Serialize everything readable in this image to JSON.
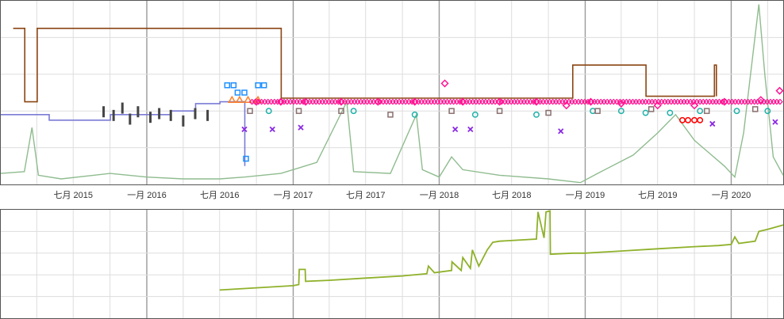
{
  "chart_data": [
    {
      "type": "line",
      "panel": "top",
      "x_tick_labels": [
        "七月 2015",
        "一月 2016",
        "七月 2016",
        "一月 2017",
        "七月 2017",
        "一月 2018",
        "七月 2018",
        "一月 2019",
        "七月 2019",
        "一月 2020"
      ],
      "x_range": [
        "2015-01-01",
        "2020-05-10"
      ],
      "y_range": [
        0,
        100
      ],
      "y_labels_visible": false,
      "grid": true,
      "colors": {
        "volume": "#8fbc8f",
        "brown": "#8b4513",
        "blue_step": "#7b7bd6",
        "dark_bars": "#444444",
        "pink": "#ff1493",
        "teal": "#20b2aa",
        "gray_squares": "#8a6f6f",
        "purple_x": "#8a2be2",
        "orange": "#ff7f27",
        "sky_blue": "#1e90ff",
        "red_circles": "#ff0000"
      },
      "series": [
        {
          "style": "area-line",
          "color_key": "volume",
          "points": [
            [
              "2015-01-01",
              6
            ],
            [
              "2015-03-01",
              7
            ],
            [
              "2015-03-20",
              31
            ],
            [
              "2015-04-05",
              5
            ],
            [
              "2015-06-01",
              3
            ],
            [
              "2015-10-01",
              6
            ],
            [
              "2016-01-01",
              4
            ],
            [
              "2016-04-01",
              3
            ],
            [
              "2016-07-01",
              3
            ],
            [
              "2016-09-01",
              4
            ],
            [
              "2016-12-01",
              6
            ],
            [
              "2017-03-01",
              12
            ],
            [
              "2017-05-15",
              45
            ],
            [
              "2017-06-01",
              7
            ],
            [
              "2017-09-01",
              6
            ],
            [
              "2017-11-05",
              38
            ],
            [
              "2017-11-20",
              8
            ],
            [
              "2018-01-01",
              4
            ],
            [
              "2018-02-01",
              15
            ],
            [
              "2018-03-01",
              8
            ],
            [
              "2018-06-01",
              5
            ],
            [
              "2018-10-01",
              3
            ],
            [
              "2018-12-20",
              1
            ],
            [
              "2019-02-01",
              6
            ],
            [
              "2019-05-01",
              16
            ],
            [
              "2019-07-01",
              28
            ],
            [
              "2019-08-15",
              38
            ],
            [
              "2019-10-01",
              24
            ],
            [
              "2019-12-15",
              10
            ],
            [
              "2020-01-10",
              4
            ],
            [
              "2020-02-01",
              28
            ],
            [
              "2020-03-10",
              98
            ],
            [
              "2020-03-25",
              60
            ],
            [
              "2020-04-15",
              15
            ],
            [
              "2020-05-10",
              5
            ]
          ]
        },
        {
          "style": "step",
          "color_key": "brown",
          "points": [
            [
              "2015-02-01",
              85
            ],
            [
              "2015-03-01",
              85
            ],
            [
              "2015-03-02",
              45
            ],
            [
              "2015-04-01",
              45
            ],
            [
              "2015-04-02",
              85
            ],
            [
              "2016-06-01",
              85
            ],
            [
              "2016-09-01",
              85
            ],
            [
              "2016-12-01",
              85
            ],
            [
              "2016-12-02",
              47
            ],
            [
              "2018-12-01",
              65
            ],
            [
              "2019-06-01",
              65
            ],
            [
              "2019-06-02",
              48
            ],
            [
              "2019-11-20",
              65
            ],
            [
              "2019-11-25",
              48
            ]
          ]
        },
        {
          "style": "step",
          "color_key": "blue_step",
          "points": [
            [
              "2015-01-01",
              38
            ],
            [
              "2015-05-01",
              38
            ],
            [
              "2015-05-02",
              35
            ],
            [
              "2015-10-01",
              35
            ],
            [
              "2015-10-02",
              38
            ],
            [
              "2016-02-01",
              38
            ],
            [
              "2016-03-01",
              40
            ],
            [
              "2016-05-01",
              40
            ],
            [
              "2016-05-02",
              44
            ],
            [
              "2016-07-01",
              44
            ],
            [
              "2016-07-02",
              45
            ],
            [
              "2016-09-01",
              45
            ],
            [
              "2016-09-02",
              10
            ]
          ]
        },
        {
          "style": "markers",
          "marker": "diamond",
          "color_key": "pink",
          "points": [
            [
              "2016-10-01",
              45
            ],
            [
              "2016-12-01",
              45
            ],
            [
              "2017-02-01",
              45
            ],
            [
              "2017-05-01",
              45
            ],
            [
              "2017-08-01",
              45
            ],
            [
              "2017-11-01",
              45
            ],
            [
              "2018-01-15",
              55
            ],
            [
              "2018-03-01",
              45
            ],
            [
              "2018-06-01",
              45
            ],
            [
              "2018-09-01",
              45
            ],
            [
              "2018-11-15",
              43
            ],
            [
              "2019-01-15",
              45
            ],
            [
              "2019-04-01",
              44
            ],
            [
              "2019-07-01",
              43
            ],
            [
              "2019-10-01",
              43
            ],
            [
              "2019-12-15",
              45
            ],
            [
              "2020-03-15",
              46
            ],
            [
              "2020-05-01",
              51
            ]
          ]
        },
        {
          "style": "markers",
          "marker": "circle",
          "color_key": "teal",
          "points": [
            [
              "2016-11-01",
              40
            ],
            [
              "2017-06-01",
              40
            ],
            [
              "2017-11-01",
              38
            ],
            [
              "2018-04-01",
              38
            ],
            [
              "2018-09-01",
              38
            ],
            [
              "2019-01-20",
              40
            ],
            [
              "2019-04-01",
              40
            ],
            [
              "2019-06-01",
              39
            ],
            [
              "2019-08-01",
              39
            ],
            [
              "2019-10-15",
              40
            ],
            [
              "2020-01-15",
              40
            ],
            [
              "2020-04-01",
              40
            ]
          ]
        },
        {
          "style": "markers",
          "marker": "square",
          "color_key": "gray_squares",
          "points": [
            [
              "2016-09-15",
              40
            ],
            [
              "2017-01-15",
              40
            ],
            [
              "2017-05-01",
              40
            ],
            [
              "2017-09-01",
              38
            ],
            [
              "2018-02-01",
              40
            ],
            [
              "2018-06-01",
              40
            ],
            [
              "2018-10-01",
              39
            ],
            [
              "2019-02-01",
              40
            ],
            [
              "2019-06-15",
              41
            ],
            [
              "2019-11-01",
              40
            ],
            [
              "2020-03-01",
              41
            ]
          ]
        },
        {
          "style": "markers",
          "marker": "x",
          "color_key": "purple_x",
          "points": [
            [
              "2016-09-01",
              30
            ],
            [
              "2016-11-10",
              30
            ],
            [
              "2017-01-20",
              31
            ],
            [
              "2018-02-10",
              30
            ],
            [
              "2018-03-20",
              30
            ],
            [
              "2018-11-01",
              29
            ],
            [
              "2019-11-15",
              33
            ],
            [
              "2020-04-20",
              34
            ]
          ]
        },
        {
          "style": "markers",
          "marker": "triangle",
          "color_key": "orange",
          "points": [
            [
              "2016-08-01",
              46
            ],
            [
              "2016-08-20",
              46
            ],
            [
              "2016-09-10",
              46
            ],
            [
              "2016-10-05",
              46
            ]
          ]
        },
        {
          "style": "markers",
          "marker": "square",
          "color_key": "sky_blue",
          "points": [
            [
              "2016-07-20",
              54
            ],
            [
              "2016-08-05",
              54
            ],
            [
              "2016-08-15",
              50
            ],
            [
              "2016-09-01",
              50
            ],
            [
              "2016-10-05",
              54
            ],
            [
              "2016-10-20",
              54
            ],
            [
              "2016-09-05",
              14
            ]
          ]
        },
        {
          "style": "markers",
          "marker": "circle",
          "color_key": "red_circles",
          "points": [
            [
              "2019-09-01",
              35
            ],
            [
              "2019-09-15",
              35
            ],
            [
              "2019-10-01",
              35
            ],
            [
              "2019-10-15",
              35
            ]
          ]
        },
        {
          "style": "bars",
          "color_key": "dark_bars",
          "points": [
            [
              "2015-09-15",
              40
            ],
            [
              "2015-10-10",
              38
            ],
            [
              "2015-11-01",
              42
            ],
            [
              "2015-11-20",
              36
            ],
            [
              "2015-12-10",
              40
            ],
            [
              "2016-01-10",
              37
            ],
            [
              "2016-02-01",
              39
            ],
            [
              "2016-03-01",
              38
            ],
            [
              "2016-04-01",
              35
            ],
            [
              "2016-05-01",
              39
            ],
            [
              "2016-06-01",
              38
            ]
          ]
        }
      ]
    },
    {
      "type": "line",
      "panel": "bottom",
      "x_range": [
        "2015-01-01",
        "2020-05-10"
      ],
      "y_range": [
        0,
        100
      ],
      "grid": true,
      "colors": {
        "line": "#8fb12a"
      },
      "series": [
        {
          "color_key": "line",
          "points": [
            [
              "2016-07-01",
              26
            ],
            [
              "2016-10-01",
              28
            ],
            [
              "2017-01-01",
              30
            ],
            [
              "2017-01-15",
              31
            ],
            [
              "2017-01-16",
              45
            ],
            [
              "2017-01-31",
              45
            ],
            [
              "2017-02-01",
              34
            ],
            [
              "2017-04-01",
              35
            ],
            [
              "2017-07-01",
              37
            ],
            [
              "2017-10-01",
              39
            ],
            [
              "2017-12-01",
              41
            ],
            [
              "2017-12-05",
              48
            ],
            [
              "2017-12-20",
              42
            ],
            [
              "2018-02-01",
              44
            ],
            [
              "2018-02-02",
              52
            ],
            [
              "2018-02-25",
              44
            ],
            [
              "2018-03-01",
              56
            ],
            [
              "2018-03-20",
              46
            ],
            [
              "2018-03-25",
              63
            ],
            [
              "2018-04-10",
              48
            ],
            [
              "2018-05-01",
              63
            ],
            [
              "2018-05-15",
              70
            ],
            [
              "2018-06-01",
              71
            ],
            [
              "2018-09-01",
              73
            ],
            [
              "2018-09-05",
              98
            ],
            [
              "2018-09-20",
              74
            ],
            [
              "2018-09-25",
              98
            ],
            [
              "2018-10-05",
              99
            ],
            [
              "2018-10-06",
              59
            ],
            [
              "2018-12-01",
              60
            ],
            [
              "2019-01-01",
              60
            ],
            [
              "2019-04-01",
              62
            ],
            [
              "2019-07-01",
              64
            ],
            [
              "2019-10-01",
              66
            ],
            [
              "2019-12-01",
              67
            ],
            [
              "2020-01-01",
              68
            ],
            [
              "2020-01-10",
              75
            ],
            [
              "2020-01-20",
              69
            ],
            [
              "2020-03-01",
              71
            ],
            [
              "2020-03-10",
              80
            ],
            [
              "2020-04-01",
              82
            ],
            [
              "2020-05-10",
              86
            ]
          ]
        }
      ]
    }
  ]
}
